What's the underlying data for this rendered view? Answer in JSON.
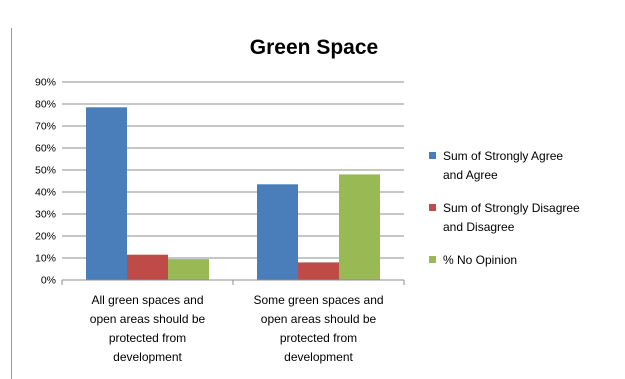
{
  "chart_data": {
    "type": "bar",
    "title": "Green Space",
    "xlabel": "",
    "ylabel": "",
    "ylim": [
      0,
      90
    ],
    "y_ticks": [
      "0%",
      "10%",
      "20%",
      "30%",
      "40%",
      "50%",
      "60%",
      "70%",
      "80%",
      "90%"
    ],
    "y_tick_values": [
      0,
      10,
      20,
      30,
      40,
      50,
      60,
      70,
      80,
      90
    ],
    "grid": true,
    "legend_position": "right",
    "categories": [
      [
        "All green spaces and",
        "open areas should be",
        "protected from",
        "development"
      ],
      [
        "Some green spaces and",
        "open areas should be",
        "protected from",
        "development"
      ]
    ],
    "series": [
      {
        "name_lines": [
          "Sum of Strongly Agree",
          "and Agree"
        ],
        "color": "#4a7ebb",
        "values": [
          78.5,
          43.5
        ]
      },
      {
        "name_lines": [
          "Sum of Strongly Disagree",
          "and Disagree"
        ],
        "color": "#be4b48",
        "values": [
          11.5,
          8
        ]
      },
      {
        "name_lines": [
          "% No Opinion"
        ],
        "color": "#98b954",
        "values": [
          9.5,
          48
        ]
      }
    ]
  },
  "colors": {
    "gridline": "#8c8c8c",
    "axis": "#8c8c8c",
    "frame_border": "#9a9a9a"
  }
}
